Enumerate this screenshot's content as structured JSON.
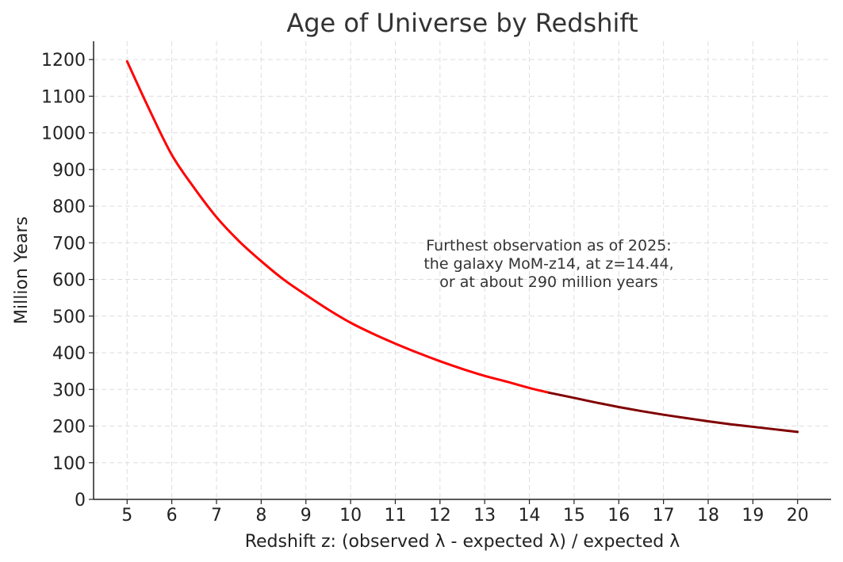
{
  "chart_data": {
    "type": "line",
    "title": "Age of Universe by Redshift",
    "xlabel": "Redshift z: (observed λ - expected λ) / expected λ",
    "ylabel": "Million Years",
    "xlim": [
      4.25,
      20.75
    ],
    "ylim": [
      0,
      1250
    ],
    "xticks": [
      5,
      6,
      7,
      8,
      9,
      10,
      11,
      12,
      13,
      14,
      15,
      16,
      17,
      18,
      19,
      20
    ],
    "yticks": [
      0,
      100,
      200,
      300,
      400,
      500,
      600,
      700,
      800,
      900,
      1000,
      1100,
      1200
    ],
    "grid": true,
    "series": [
      {
        "color": "#ff0000",
        "x": [
          5,
          5.5,
          6,
          6.5,
          7,
          7.5,
          8,
          8.5,
          9,
          9.5,
          10,
          10.5,
          11,
          11.5,
          12,
          12.5,
          13,
          13.5,
          14,
          14.44
        ],
        "y": [
          1195,
          1063,
          940,
          850,
          770,
          705,
          650,
          600,
          558,
          518,
          482,
          452,
          425,
          400,
          377,
          356,
          337,
          321,
          304,
          291
        ]
      },
      {
        "color": "#800000",
        "x": [
          14.44,
          15,
          15.5,
          16,
          16.5,
          17,
          17.5,
          18,
          18.5,
          19,
          19.5,
          20
        ],
        "y": [
          291,
          277,
          264,
          252,
          241,
          231,
          222,
          213,
          205,
          198,
          191,
          184
        ]
      }
    ],
    "annotation": {
      "lines": [
        "Furthest observation as of 2025:",
        "the galaxy MoM-z14, at z=14.44,",
        "or at about 290 million years"
      ],
      "x": 14.44,
      "y": 640
    }
  }
}
